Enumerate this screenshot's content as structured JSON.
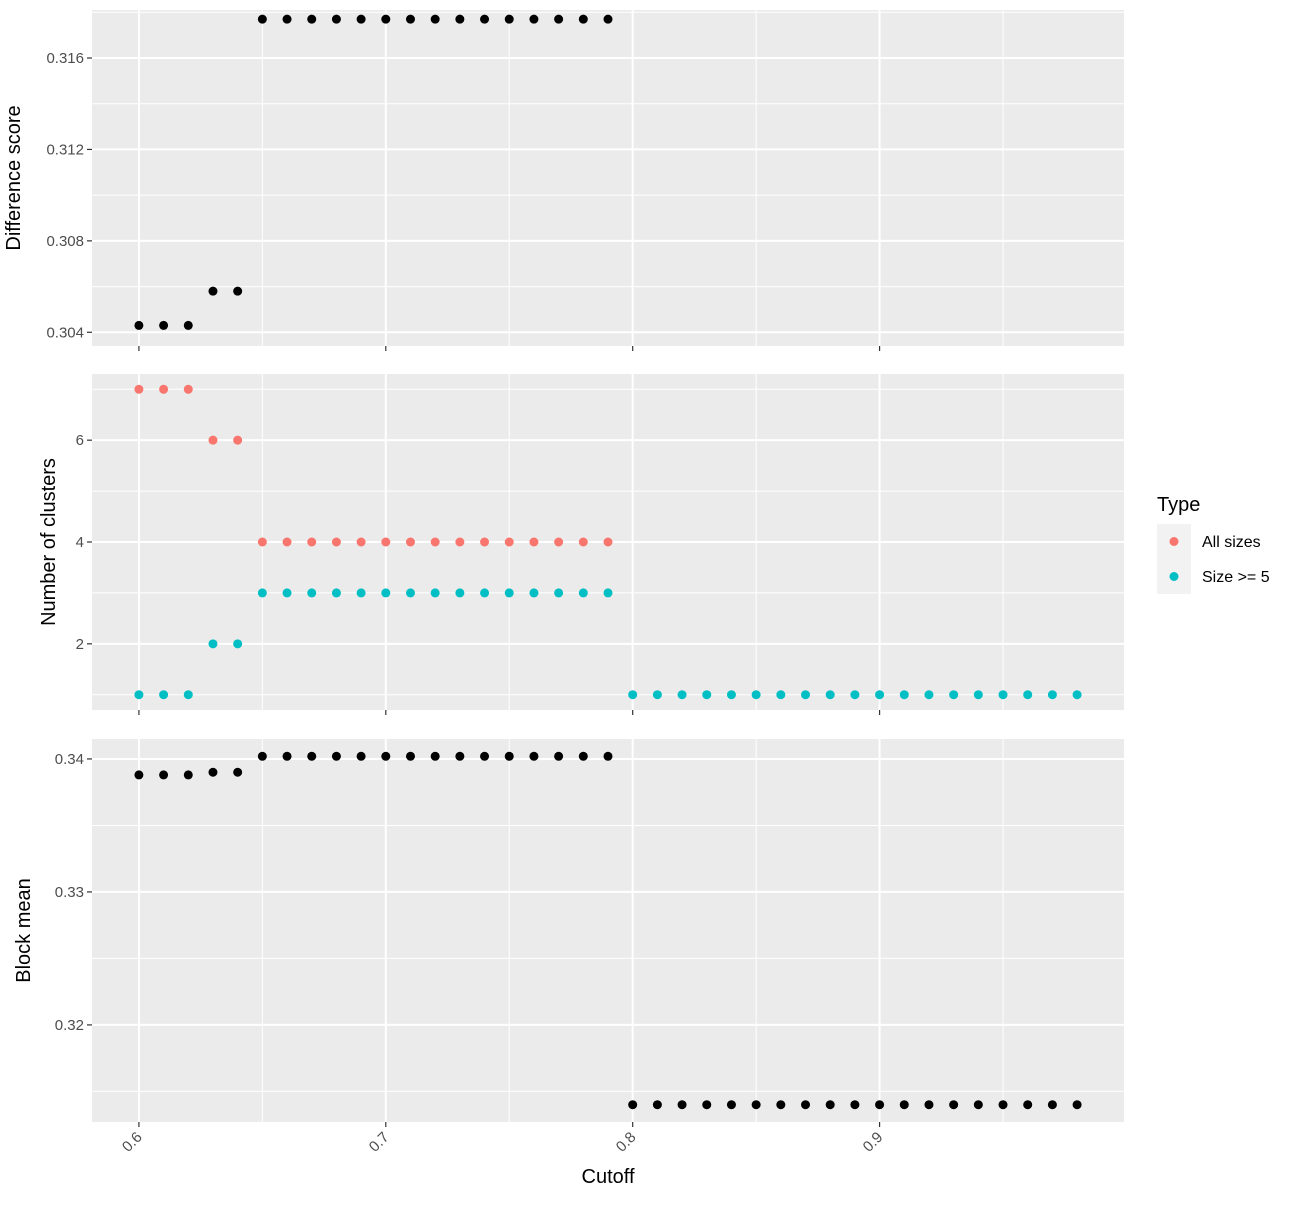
{
  "chart_data": {
    "type": "scatter",
    "x_label": "Cutoff",
    "x_ticks": [
      0.6,
      0.7,
      0.8,
      0.9
    ],
    "x_range": [
      0.581,
      0.999
    ],
    "grid": true,
    "legend": {
      "title": "Type",
      "placement": "right",
      "entries": [
        {
          "label": "All sizes",
          "color": "#F8766D"
        },
        {
          "label": "Size >= 5",
          "color": "#00BFC4"
        }
      ]
    },
    "panels": [
      {
        "y_label": "Difference score",
        "y_ticks": [
          "0.304",
          "0.308",
          "0.312",
          "0.316"
        ],
        "y_tick_values": [
          0.304,
          0.308,
          0.312,
          0.316
        ],
        "y_range": [
          0.3034,
          0.3181
        ],
        "series": [
          {
            "color": "#000000",
            "x": [
              0.6,
              0.61,
              0.62,
              0.63,
              0.64,
              0.65,
              0.66,
              0.67,
              0.68,
              0.69,
              0.7,
              0.71,
              0.72,
              0.73,
              0.74,
              0.75,
              0.76,
              0.77,
              0.78,
              0.79
            ],
            "y": [
              0.3043,
              0.3043,
              0.3043,
              0.3058,
              0.3058,
              0.3177,
              0.3177,
              0.3177,
              0.3177,
              0.3177,
              0.3177,
              0.3177,
              0.3177,
              0.3177,
              0.3177,
              0.3177,
              0.3177,
              0.3177,
              0.3177,
              0.3177
            ]
          }
        ]
      },
      {
        "y_label": "Number of clusters",
        "y_ticks": [
          "2",
          "4",
          "6"
        ],
        "y_tick_values": [
          2,
          4,
          6
        ],
        "y_range": [
          0.7,
          7.3
        ],
        "series": [
          {
            "name": "All sizes",
            "color": "#F8766D",
            "x": [
              0.6,
              0.61,
              0.62,
              0.63,
              0.64,
              0.65,
              0.66,
              0.67,
              0.68,
              0.69,
              0.7,
              0.71,
              0.72,
              0.73,
              0.74,
              0.75,
              0.76,
              0.77,
              0.78,
              0.79
            ],
            "y": [
              7,
              7,
              7,
              6,
              6,
              4,
              4,
              4,
              4,
              4,
              4,
              4,
              4,
              4,
              4,
              4,
              4,
              4,
              4,
              4
            ]
          },
          {
            "name": "Size >= 5",
            "color": "#00BFC4",
            "x": [
              0.6,
              0.61,
              0.62,
              0.63,
              0.64,
              0.65,
              0.66,
              0.67,
              0.68,
              0.69,
              0.7,
              0.71,
              0.72,
              0.73,
              0.74,
              0.75,
              0.76,
              0.77,
              0.78,
              0.79,
              0.8,
              0.81,
              0.82,
              0.83,
              0.84,
              0.85,
              0.86,
              0.87,
              0.88,
              0.89,
              0.9,
              0.91,
              0.92,
              0.93,
              0.94,
              0.95,
              0.96,
              0.97,
              0.98
            ],
            "y": [
              1,
              1,
              1,
              2,
              2,
              3,
              3,
              3,
              3,
              3,
              3,
              3,
              3,
              3,
              3,
              3,
              3,
              3,
              3,
              3,
              1,
              1,
              1,
              1,
              1,
              1,
              1,
              1,
              1,
              1,
              1,
              1,
              1,
              1,
              1,
              1,
              1,
              1,
              1
            ]
          }
        ]
      },
      {
        "y_label": "Block mean",
        "y_ticks": [
          "0.32",
          "0.33",
          "0.34"
        ],
        "y_tick_values": [
          0.32,
          0.33,
          0.34
        ],
        "y_range": [
          0.3127,
          0.3415
        ],
        "series": [
          {
            "color": "#000000",
            "x": [
              0.6,
              0.61,
              0.62,
              0.63,
              0.64,
              0.65,
              0.66,
              0.67,
              0.68,
              0.69,
              0.7,
              0.71,
              0.72,
              0.73,
              0.74,
              0.75,
              0.76,
              0.77,
              0.78,
              0.79,
              0.8,
              0.81,
              0.82,
              0.83,
              0.84,
              0.85,
              0.86,
              0.87,
              0.88,
              0.89,
              0.9,
              0.91,
              0.92,
              0.93,
              0.94,
              0.95,
              0.96,
              0.97,
              0.98
            ],
            "y": [
              0.3388,
              0.3388,
              0.3388,
              0.339,
              0.339,
              0.3402,
              0.3402,
              0.3402,
              0.3402,
              0.3402,
              0.3402,
              0.3402,
              0.3402,
              0.3402,
              0.3402,
              0.3402,
              0.3402,
              0.3402,
              0.3402,
              0.3402,
              0.314,
              0.314,
              0.314,
              0.314,
              0.314,
              0.314,
              0.314,
              0.314,
              0.314,
              0.314,
              0.314,
              0.314,
              0.314,
              0.314,
              0.314,
              0.314,
              0.314,
              0.314,
              0.314
            ]
          }
        ]
      }
    ]
  }
}
